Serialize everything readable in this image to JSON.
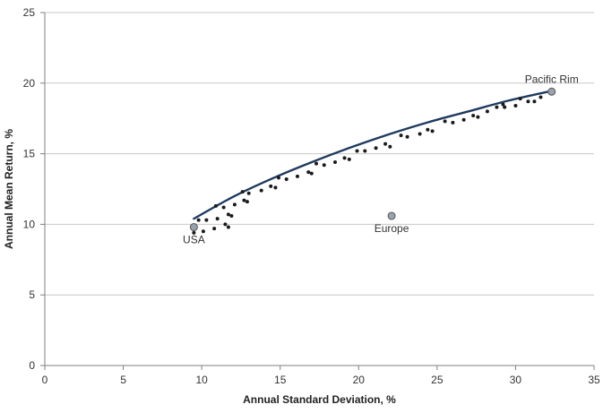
{
  "chart_data": {
    "type": "scatter",
    "title": "",
    "xlabel": "Annual Standard Deviation, %",
    "ylabel": "Annual Mean Return, %",
    "xlim": [
      0,
      35
    ],
    "ylim": [
      0,
      25
    ],
    "x_ticks": [
      0,
      5,
      10,
      15,
      20,
      25,
      30,
      35
    ],
    "y_ticks": [
      0,
      5,
      10,
      15,
      20,
      25
    ],
    "grid": "horizontal",
    "legend": "none",
    "colors": {
      "points": "#1a1a1a",
      "frontier": "#1f3a5f",
      "highlight_fill": "#9aa3ad",
      "highlight_stroke": "#555555",
      "grid": "#c8c8c8",
      "axis": "#808080"
    },
    "series": [
      {
        "kind": "scatter",
        "points": [
          [
            9.5,
            9.4
          ],
          [
            9.8,
            10.3
          ],
          [
            10.1,
            9.5
          ],
          [
            10.3,
            10.3
          ],
          [
            10.8,
            9.7
          ],
          [
            10.9,
            11.3
          ],
          [
            11.0,
            10.4
          ],
          [
            11.4,
            11.2
          ],
          [
            11.5,
            10.0
          ],
          [
            11.7,
            9.8
          ],
          [
            11.7,
            10.7
          ],
          [
            11.9,
            10.6
          ],
          [
            12.1,
            11.4
          ],
          [
            12.6,
            12.3
          ],
          [
            12.7,
            11.7
          ],
          [
            12.9,
            11.6
          ],
          [
            13.0,
            12.2
          ],
          [
            13.8,
            12.4
          ],
          [
            14.4,
            12.7
          ],
          [
            14.7,
            12.6
          ],
          [
            14.9,
            13.3
          ],
          [
            15.4,
            13.2
          ],
          [
            16.1,
            13.4
          ],
          [
            16.8,
            13.7
          ],
          [
            17.0,
            13.6
          ],
          [
            17.3,
            14.3
          ],
          [
            17.8,
            14.2
          ],
          [
            18.5,
            14.4
          ],
          [
            19.1,
            14.7
          ],
          [
            19.4,
            14.6
          ],
          [
            19.9,
            15.2
          ],
          [
            20.4,
            15.2
          ],
          [
            21.1,
            15.4
          ],
          [
            21.7,
            15.7
          ],
          [
            22.0,
            15.5
          ],
          [
            22.7,
            16.3
          ],
          [
            23.1,
            16.2
          ],
          [
            23.9,
            16.4
          ],
          [
            24.4,
            16.7
          ],
          [
            24.7,
            16.6
          ],
          [
            25.5,
            17.3
          ],
          [
            26.0,
            17.2
          ],
          [
            26.7,
            17.4
          ],
          [
            27.3,
            17.7
          ],
          [
            27.6,
            17.6
          ],
          [
            28.2,
            18.0
          ],
          [
            28.8,
            18.3
          ],
          [
            29.2,
            18.5
          ],
          [
            29.3,
            18.3
          ],
          [
            30.0,
            18.4
          ],
          [
            30.3,
            18.9
          ],
          [
            30.8,
            18.7
          ],
          [
            31.2,
            18.7
          ],
          [
            31.6,
            19.0
          ],
          [
            32.3,
            19.3
          ]
        ]
      },
      {
        "kind": "curve",
        "points": [
          [
            9.5,
            10.4
          ],
          [
            12.0,
            11.95
          ],
          [
            14.5,
            13.25
          ],
          [
            17.0,
            14.4
          ],
          [
            19.5,
            15.45
          ],
          [
            22.0,
            16.4
          ],
          [
            24.5,
            17.25
          ],
          [
            27.0,
            18.0
          ],
          [
            29.5,
            18.75
          ],
          [
            32.3,
            19.45
          ]
        ]
      }
    ],
    "highlights": [
      {
        "label": "USA",
        "x": 9.5,
        "y": 9.8
      },
      {
        "label": "Europe",
        "x": 22.1,
        "y": 10.6
      },
      {
        "label": "Pacific Rim",
        "x": 32.3,
        "y": 19.4
      }
    ]
  }
}
